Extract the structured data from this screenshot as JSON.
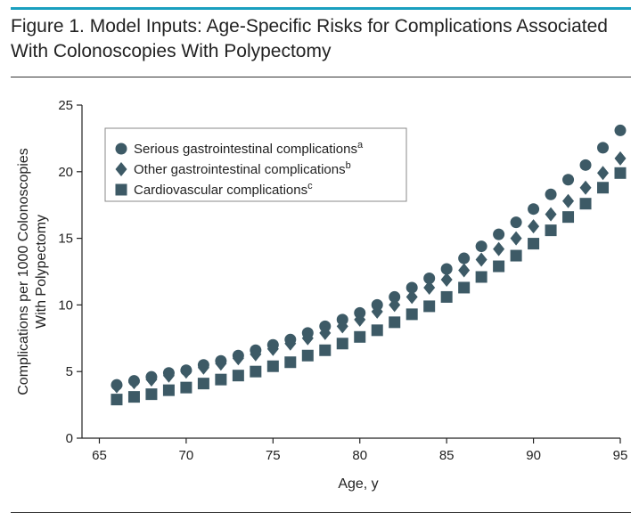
{
  "figure": {
    "title_line1": "Figure 1. Model Inputs: Age-Specific Risks for Complications Associated",
    "title_line2": "With Colonoscopies With Polypectomy"
  },
  "colors": {
    "accent": "#1a9fbf",
    "marker": "#3d5a66",
    "text": "#222222"
  },
  "chart_data": {
    "type": "scatter",
    "title": "",
    "xlabel": "Age, y",
    "ylabel": "Complications per 1000 Colonoscopies With Polypectomy",
    "ylabel_lines": [
      "Complications per 1000 Colonoscopies",
      "With Polypectomy"
    ],
    "xlim": [
      64,
      95
    ],
    "ylim": [
      0,
      25
    ],
    "xticks": [
      65,
      70,
      75,
      80,
      85,
      90,
      95
    ],
    "yticks": [
      0,
      5,
      10,
      15,
      20,
      25
    ],
    "grid": false,
    "legend": "top-left",
    "x": [
      66,
      67,
      68,
      69,
      70,
      71,
      72,
      73,
      74,
      75,
      76,
      77,
      78,
      79,
      80,
      81,
      82,
      83,
      84,
      85,
      86,
      87,
      88,
      89,
      90,
      91,
      92,
      93,
      94,
      95
    ],
    "series": [
      {
        "name": "Serious gastrointestinal complications",
        "sup": "a",
        "marker": "circle",
        "values": [
          4.0,
          4.3,
          4.6,
          4.9,
          5.1,
          5.5,
          5.8,
          6.2,
          6.6,
          7.0,
          7.4,
          7.9,
          8.4,
          8.9,
          9.4,
          10.0,
          10.6,
          11.3,
          12.0,
          12.7,
          13.5,
          14.4,
          15.3,
          16.2,
          17.2,
          18.3,
          19.4,
          20.5,
          21.8,
          23.1
        ]
      },
      {
        "name": "Other gastrointestinal complications",
        "sup": "b",
        "marker": "diamond",
        "values": [
          3.9,
          4.2,
          4.4,
          4.7,
          5.0,
          5.3,
          5.6,
          6.0,
          6.3,
          6.7,
          7.1,
          7.5,
          7.9,
          8.4,
          8.9,
          9.5,
          10.0,
          10.6,
          11.3,
          11.9,
          12.6,
          13.4,
          14.2,
          15.0,
          15.9,
          16.8,
          17.8,
          18.8,
          19.9,
          21.0
        ]
      },
      {
        "name": "Cardiovascular complications",
        "sup": "c",
        "marker": "square",
        "values": [
          2.9,
          3.1,
          3.3,
          3.6,
          3.8,
          4.1,
          4.4,
          4.7,
          5.0,
          5.4,
          5.7,
          6.2,
          6.6,
          7.1,
          7.6,
          8.1,
          8.7,
          9.3,
          9.9,
          10.6,
          11.3,
          12.1,
          12.9,
          13.7,
          14.6,
          15.6,
          16.6,
          17.6,
          18.8,
          19.9
        ]
      }
    ]
  }
}
